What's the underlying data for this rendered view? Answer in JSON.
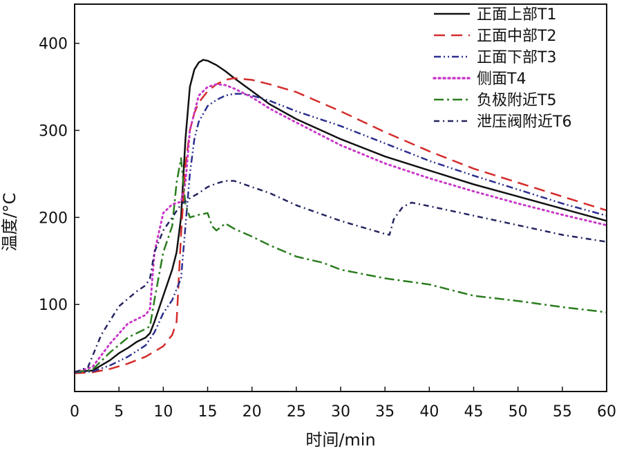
{
  "chart_data": {
    "type": "line",
    "xlabel": "时间/min",
    "ylabel": "温度/°C",
    "xlim": [
      0,
      60
    ],
    "ylim": [
      0,
      445
    ],
    "xticks": [
      0,
      5,
      10,
      15,
      20,
      25,
      30,
      35,
      40,
      45,
      50,
      55,
      60
    ],
    "yticks": [
      100,
      200,
      300,
      400
    ],
    "grid": false,
    "legend_position": "top-right",
    "series": [
      {
        "name": "正面上部T1",
        "color": "#111111",
        "dash": "solid",
        "x": [
          0,
          2,
          4,
          5,
          6,
          7,
          8,
          8.5,
          9,
          10,
          11,
          11.5,
          12,
          12.5,
          13,
          13.5,
          14,
          14.5,
          15,
          16,
          17,
          18,
          20,
          22,
          25,
          30,
          35,
          40,
          45,
          50,
          55,
          60
        ],
        "y": [
          23,
          24,
          36,
          44,
          50,
          57,
          62,
          67,
          80,
          110,
          140,
          160,
          200,
          290,
          350,
          370,
          378,
          381,
          380,
          375,
          368,
          360,
          345,
          330,
          313,
          290,
          270,
          254,
          238,
          224,
          210,
          196
        ]
      },
      {
        "name": "正面中部T2",
        "color": "#d42b2b",
        "dash": "long-dash",
        "x": [
          0,
          2,
          4,
          6,
          8,
          10,
          11,
          11.5,
          12,
          12.5,
          13,
          13.5,
          14,
          15,
          16,
          17,
          18,
          20,
          22,
          25,
          30,
          35,
          40,
          45,
          50,
          55,
          60
        ],
        "y": [
          21,
          22,
          26,
          32,
          40,
          52,
          65,
          80,
          180,
          260,
          300,
          320,
          332,
          345,
          353,
          358,
          360,
          358,
          353,
          344,
          322,
          298,
          276,
          256,
          240,
          224,
          208
        ]
      },
      {
        "name": "正面下部T3",
        "color": "#2b2f8f",
        "dash": "dash-dot-dot",
        "x": [
          0,
          2,
          4,
          6,
          8,
          9,
          10,
          11,
          12,
          12.5,
          13,
          13.5,
          14,
          15,
          16,
          17,
          18,
          19,
          20,
          22,
          25,
          30,
          35,
          40,
          45,
          50,
          55,
          60
        ],
        "y": [
          22,
          23,
          30,
          40,
          53,
          68,
          90,
          105,
          130,
          190,
          250,
          290,
          310,
          328,
          335,
          340,
          342,
          342,
          340,
          334,
          322,
          305,
          285,
          265,
          248,
          232,
          216,
          202
        ]
      },
      {
        "name": "侧面T4",
        "color": "#c837c8",
        "dash": "dotted",
        "x": [
          0,
          2,
          4,
          6,
          8,
          8.5,
          9,
          10,
          11,
          12,
          12.5,
          13,
          14,
          15,
          16,
          17,
          18,
          20,
          22,
          25,
          30,
          35,
          40,
          45,
          50,
          55,
          60
        ],
        "y": [
          22,
          28,
          55,
          78,
          88,
          95,
          160,
          205,
          215,
          218,
          240,
          300,
          340,
          350,
          353,
          352,
          348,
          338,
          325,
          309,
          283,
          262,
          245,
          230,
          216,
          203,
          191
        ]
      },
      {
        "name": "负极附近T5",
        "color": "#2a7d1e",
        "dash": "long-dash-dot",
        "x": [
          0,
          2,
          4,
          6,
          8,
          8.5,
          9,
          10,
          11,
          11.5,
          12,
          12.5,
          13,
          14,
          15,
          15.5,
          16,
          17,
          18,
          20,
          22,
          25,
          28,
          30,
          35,
          40,
          45,
          50,
          55,
          60
        ],
        "y": [
          22,
          25,
          45,
          62,
          72,
          75,
          105,
          160,
          190,
          240,
          268,
          215,
          200,
          203,
          205,
          190,
          185,
          193,
          187,
          178,
          168,
          155,
          148,
          140,
          130,
          123,
          110,
          104,
          97,
          91
        ]
      },
      {
        "name": "泄压阀附近T6",
        "color": "#252560",
        "dash": "dash-dot",
        "x": [
          0,
          1.5,
          3,
          5,
          7,
          8,
          8.5,
          9,
          10,
          11,
          12,
          13,
          14,
          15,
          16,
          17,
          18,
          20,
          22,
          25,
          30,
          35,
          35.5,
          36,
          37,
          38,
          40,
          45,
          50,
          55,
          60
        ],
        "y": [
          22,
          28,
          65,
          98,
          115,
          122,
          130,
          160,
          185,
          200,
          215,
          222,
          228,
          235,
          239,
          242,
          242,
          235,
          228,
          214,
          196,
          181,
          180,
          198,
          212,
          217,
          213,
          202,
          191,
          180,
          172
        ]
      }
    ]
  }
}
